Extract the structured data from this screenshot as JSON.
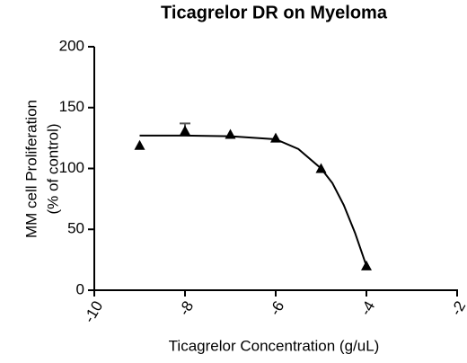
{
  "chart_data": {
    "type": "scatter",
    "title": "Ticagrelor DR on Myeloma",
    "xlabel": "Ticagrelor Concentration (g/uL)",
    "ylabel": [
      "MM cell Proliferation",
      "(% of control)"
    ],
    "x": [
      -9,
      -8,
      -7,
      -6,
      -5,
      -4
    ],
    "values": [
      119,
      131,
      128,
      125,
      100,
      20
    ],
    "errors": [
      null,
      6,
      null,
      null,
      null,
      null
    ],
    "color": "#000000",
    "fit_curve": {
      "x": [
        -9,
        -8,
        -7,
        -6,
        -5.5,
        -5,
        -4.75,
        -4.5,
        -4.25,
        -4
      ],
      "values": [
        127,
        127,
        126.5,
        124,
        116,
        100,
        88,
        70,
        47,
        20
      ]
    },
    "xlim": [
      -10,
      -2
    ],
    "xticks": [
      -10,
      -8,
      -6,
      -4,
      -2
    ],
    "ylim": [
      0,
      200
    ],
    "yticks": [
      0,
      50,
      100,
      150,
      200
    ]
  }
}
